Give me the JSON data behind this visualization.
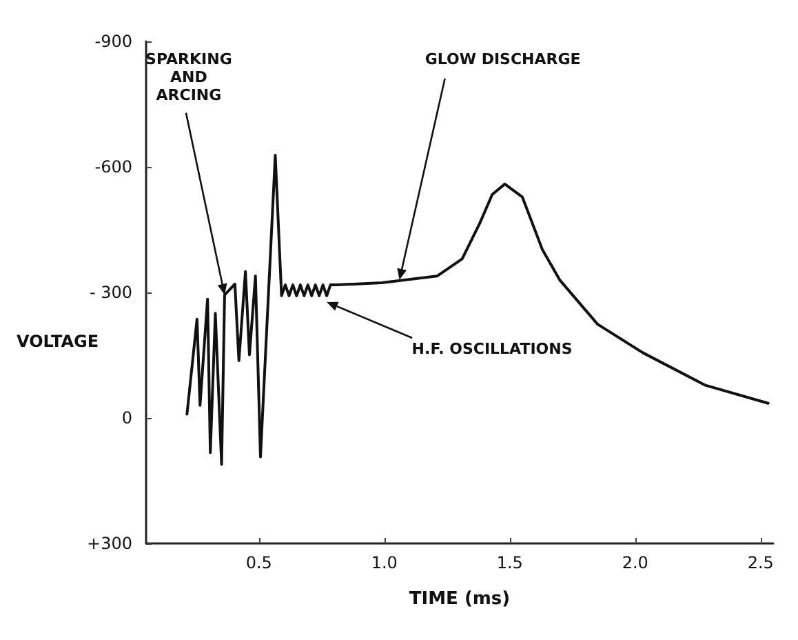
{
  "chart_data": {
    "type": "line",
    "xlabel": "TIME (ms)",
    "ylabel": "VOLTAGE",
    "xlim": [
      0.05,
      2.55
    ],
    "ylim": [
      300,
      -900
    ],
    "xticks": [
      0.5,
      {
        "value": 1,
        "label": "1.0"
      },
      1.5,
      {
        "value": 2,
        "label": "2.0"
      },
      2.5
    ],
    "yticks": [
      {
        "value": -900,
        "label": "-900"
      },
      {
        "value": -600,
        "label": "-600"
      },
      {
        "value": -300,
        "label": "- 300"
      },
      0,
      {
        "value": 300,
        "label": "+300"
      }
    ],
    "grid": false,
    "marker": "none",
    "line_style": "solid",
    "series": [
      {
        "color": "#111111",
        "x": [
          0.213,
          0.253,
          0.265,
          0.295,
          0.306,
          0.326,
          0.351,
          0.363,
          0.404,
          0.42,
          0.446,
          0.462,
          0.486,
          0.506,
          0.565,
          0.59,
          0.605,
          0.62,
          0.635,
          0.65,
          0.665,
          0.68,
          0.695,
          0.71,
          0.725,
          0.74,
          0.755,
          0.77,
          0.785,
          0.81,
          0.99,
          1.21,
          1.31,
          1.38,
          1.43,
          1.48,
          1.55,
          1.59,
          1.63,
          1.7,
          1.85,
          2.03,
          2.28,
          2.53
        ],
        "values": [
          -9,
          -236,
          -30,
          -284,
          83,
          -250,
          111,
          -294,
          -320,
          -137,
          -350,
          -151,
          -339,
          93,
          -628,
          -292,
          -318,
          -292,
          -318,
          -292,
          -318,
          -292,
          -318,
          -292,
          -318,
          -292,
          -318,
          -292,
          -318,
          -318,
          -323,
          -339,
          -380,
          -465,
          -534,
          -559,
          -528,
          -465,
          -402,
          -329,
          -224,
          -156,
          -78,
          -35
        ]
      }
    ],
    "annotations": [
      {
        "text": "SPARKING\nAND\nARCING",
        "x": 0.363,
        "y": -294
      },
      {
        "text": "GLOW DISCHARGE",
        "x": 1.06,
        "y": -330
      },
      {
        "text": "H.F. OSCILLATIONS",
        "x": 0.77,
        "y": -277
      }
    ]
  }
}
